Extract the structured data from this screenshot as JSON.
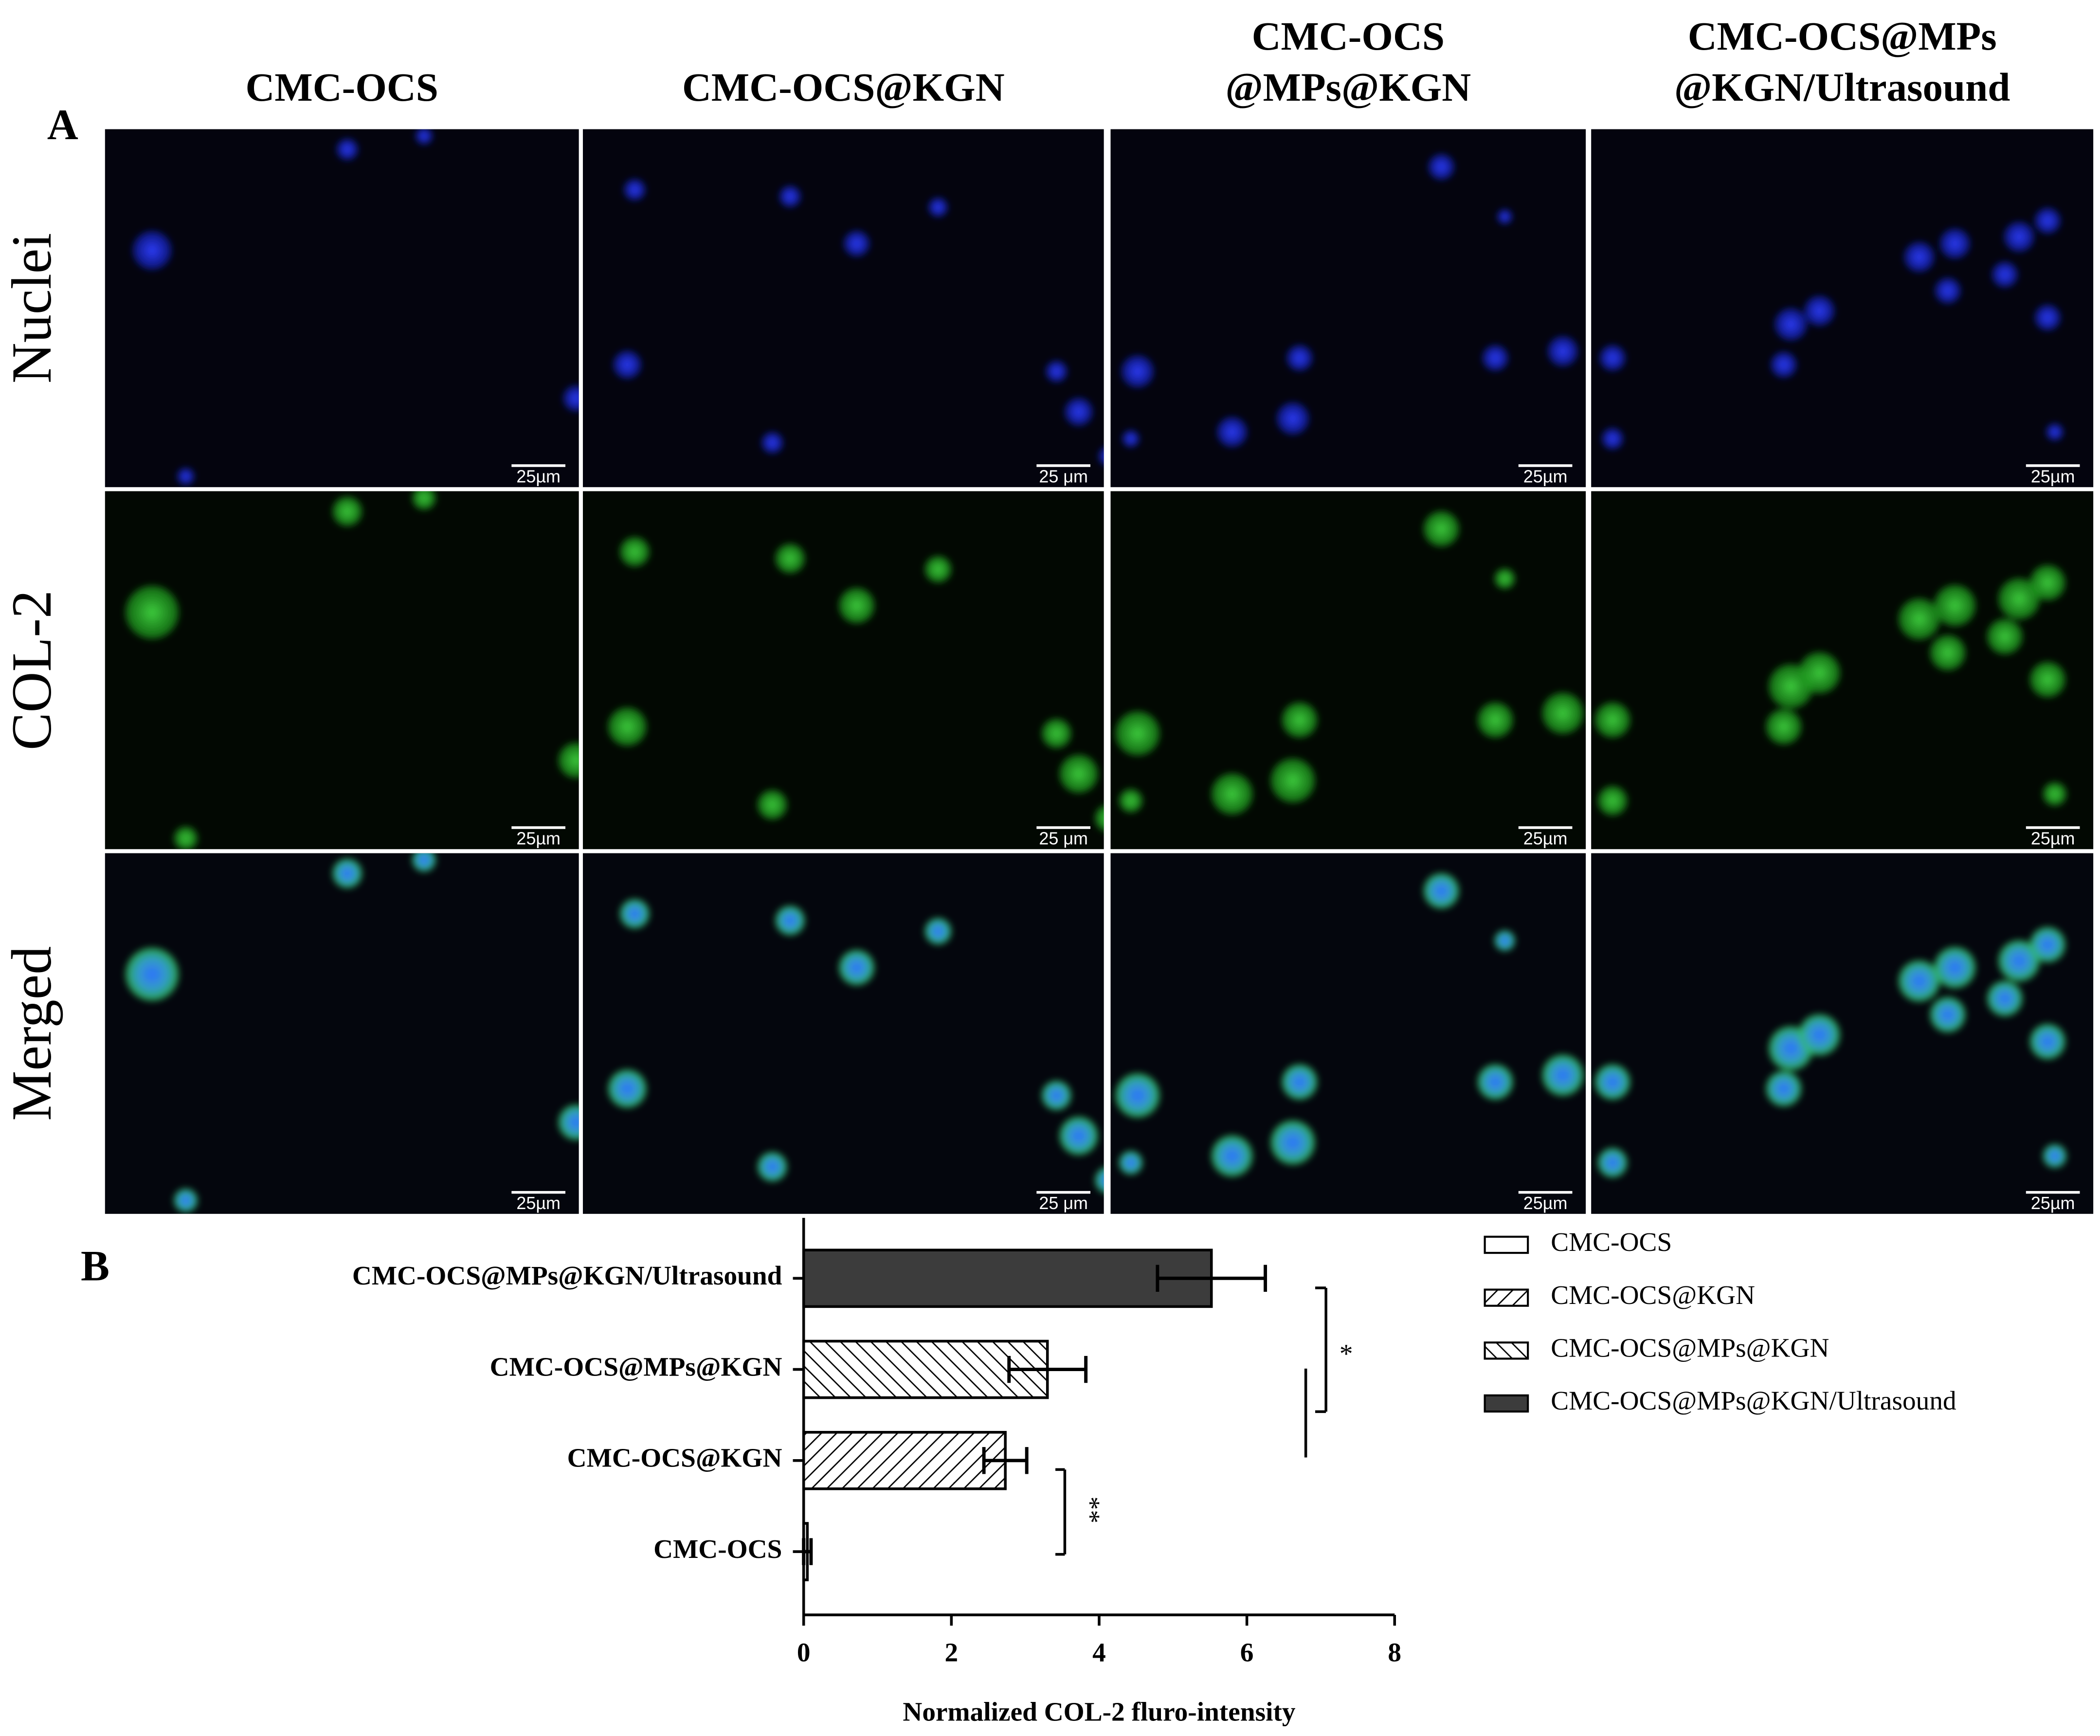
{
  "panel_labels": {
    "a": "A",
    "b": "B"
  },
  "column_headers": [
    [
      "CMC-OCS"
    ],
    [
      "CMC-OCS@KGN"
    ],
    [
      "CMC-OCS",
      "@MPs@KGN"
    ],
    [
      "CMC-OCS@MPs",
      "@KGN/Ultrasound"
    ]
  ],
  "row_labels": [
    "Nuclei",
    "COL-2",
    "Merged"
  ],
  "scale_bars": [
    "25µm",
    "25 μm",
    "25µm",
    "25µm"
  ],
  "chart_data": {
    "type": "bar",
    "orientation": "horizontal",
    "categories": [
      "CMC-OCS",
      "CMC-OCS@KGN",
      "CMC-OCS@MPs@KGN",
      "CMC-OCS@MPs@KGN/Ultrasound"
    ],
    "values": [
      0.05,
      2.73,
      3.3,
      5.52
    ],
    "errors": [
      0.05,
      0.29,
      0.52,
      0.73
    ],
    "fills": [
      "#ffffff",
      "hatch-up",
      "hatch-down",
      "#3c3c3c"
    ],
    "xlim": [
      0,
      8
    ],
    "xticks": [
      0,
      2,
      4,
      6,
      8
    ],
    "xlabel": "Normalized COL-2 fluro-intensity",
    "legend": "upper right",
    "annotations": [
      "*",
      "**"
    ]
  }
}
